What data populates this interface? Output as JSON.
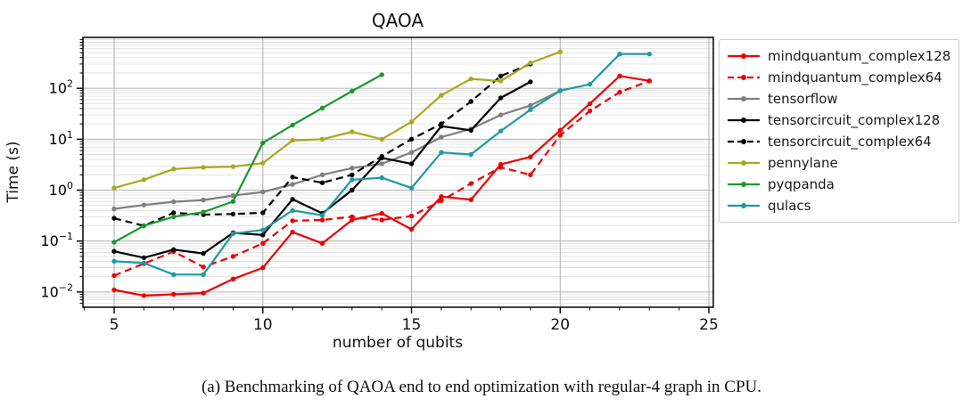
{
  "figure": {
    "caption": "(a) Benchmarking of QAOA end to end optimization with regular-4 graph in CPU."
  },
  "chart_data": {
    "type": "line",
    "title": "QAOA",
    "xlabel": "number of qubits",
    "ylabel": "Time (s)",
    "x_ticks": [
      5,
      10,
      15,
      20,
      25
    ],
    "x_minor_tick_step": 1,
    "y_scale": "log",
    "y_tick_exponents": [
      -2,
      -1,
      0,
      1,
      2
    ],
    "xlim": [
      3.95,
      25.15
    ],
    "ylim_log": [
      -2.3,
      3.0
    ],
    "grid": "both",
    "legend_position": "outside-right",
    "axis_color": "#000000",
    "grid_major_color": "#b0b0b0",
    "grid_minor_color": "#dcdcdc",
    "series": [
      {
        "name": "mindquantum_complex128",
        "color": "#ec0000",
        "dash": "solid",
        "points": [
          [
            5,
            0.011
          ],
          [
            6,
            0.0085
          ],
          [
            7,
            0.009
          ],
          [
            8,
            0.0095
          ],
          [
            9,
            0.018
          ],
          [
            10,
            0.03
          ],
          [
            11,
            0.15
          ],
          [
            12,
            0.09
          ],
          [
            13,
            0.26
          ],
          [
            14,
            0.35
          ],
          [
            15,
            0.17
          ],
          [
            16,
            0.75
          ],
          [
            17,
            0.65
          ],
          [
            18,
            3.2
          ],
          [
            19,
            4.5
          ],
          [
            20,
            15
          ],
          [
            21,
            50
          ],
          [
            22,
            175
          ],
          [
            23,
            140
          ]
        ]
      },
      {
        "name": "mindquantum_complex64",
        "color": "#ec0000",
        "dash": "dashed",
        "points": [
          [
            5,
            0.021
          ],
          [
            6,
            0.036
          ],
          [
            7,
            0.062
          ],
          [
            8,
            0.031
          ],
          [
            9,
            0.05
          ],
          [
            10,
            0.09
          ],
          [
            11,
            0.25
          ],
          [
            12,
            0.26
          ],
          [
            13,
            0.3
          ],
          [
            14,
            0.26
          ],
          [
            15,
            0.31
          ],
          [
            16,
            0.62
          ],
          [
            17,
            1.35
          ],
          [
            18,
            2.8
          ],
          [
            19,
            2.0
          ],
          [
            20,
            12
          ],
          [
            21,
            36
          ],
          [
            22,
            84
          ],
          [
            23,
            140
          ]
        ]
      },
      {
        "name": "tensorflow",
        "color": "#7f7f7f",
        "dash": "solid",
        "points": [
          [
            5,
            0.43
          ],
          [
            6,
            0.51
          ],
          [
            7,
            0.59
          ],
          [
            8,
            0.64
          ],
          [
            9,
            0.78
          ],
          [
            10,
            0.92
          ],
          [
            11,
            1.3
          ],
          [
            12,
            2.0
          ],
          [
            13,
            2.7
          ],
          [
            14,
            3.3
          ],
          [
            15,
            5.5
          ],
          [
            16,
            11
          ],
          [
            17,
            16
          ],
          [
            18,
            30
          ],
          [
            19,
            46
          ],
          [
            20,
            90
          ]
        ]
      },
      {
        "name": "tensorcircuit_complex128",
        "color": "#000000",
        "dash": "solid",
        "points": [
          [
            5,
            0.063
          ],
          [
            6,
            0.047
          ],
          [
            7,
            0.068
          ],
          [
            8,
            0.057
          ],
          [
            9,
            0.145
          ],
          [
            10,
            0.132
          ],
          [
            11,
            0.66
          ],
          [
            12,
            0.35
          ],
          [
            13,
            1.0
          ],
          [
            14,
            4.3
          ],
          [
            15,
            3.3
          ],
          [
            16,
            18
          ],
          [
            17,
            15
          ],
          [
            18,
            65
          ],
          [
            19,
            134
          ]
        ]
      },
      {
        "name": "tensorcircuit_complex64",
        "color": "#000000",
        "dash": "dashed",
        "points": [
          [
            5,
            0.28
          ],
          [
            6,
            0.2
          ],
          [
            7,
            0.36
          ],
          [
            8,
            0.33
          ],
          [
            9,
            0.34
          ],
          [
            10,
            0.36
          ],
          [
            11,
            1.8
          ],
          [
            12,
            1.4
          ],
          [
            13,
            2.0
          ],
          [
            14,
            4.6
          ],
          [
            15,
            10
          ],
          [
            16,
            20
          ],
          [
            17,
            55
          ],
          [
            18,
            175
          ],
          [
            19,
            300
          ]
        ]
      },
      {
        "name": "pennylane",
        "color": "#a8a91e",
        "dash": "solid",
        "points": [
          [
            5,
            1.1
          ],
          [
            6,
            1.6
          ],
          [
            7,
            2.6
          ],
          [
            8,
            2.8
          ],
          [
            9,
            2.9
          ],
          [
            10,
            3.4
          ],
          [
            11,
            9.5
          ],
          [
            12,
            10
          ],
          [
            13,
            14
          ],
          [
            14,
            10
          ],
          [
            15,
            22
          ],
          [
            16,
            73
          ],
          [
            17,
            153
          ],
          [
            18,
            139
          ],
          [
            19,
            316
          ],
          [
            20,
            520
          ]
        ]
      },
      {
        "name": "pyqpanda",
        "color": "#18982f",
        "dash": "solid",
        "points": [
          [
            5,
            0.095
          ],
          [
            6,
            0.2
          ],
          [
            7,
            0.3
          ],
          [
            8,
            0.37
          ],
          [
            9,
            0.6
          ],
          [
            10,
            8.5
          ],
          [
            11,
            19
          ],
          [
            12,
            41
          ],
          [
            13,
            88
          ],
          [
            14,
            185
          ]
        ]
      },
      {
        "name": "qulacs",
        "color": "#1f99a3",
        "dash": "solid",
        "points": [
          [
            5,
            0.04
          ],
          [
            6,
            0.037
          ],
          [
            7,
            0.022
          ],
          [
            8,
            0.022
          ],
          [
            9,
            0.14
          ],
          [
            10,
            0.165
          ],
          [
            11,
            0.4
          ],
          [
            12,
            0.32
          ],
          [
            13,
            1.6
          ],
          [
            14,
            1.75
          ],
          [
            15,
            1.1
          ],
          [
            16,
            5.5
          ],
          [
            17,
            5.0
          ],
          [
            18,
            14.5
          ],
          [
            19,
            38
          ],
          [
            20,
            90
          ],
          [
            21,
            120
          ],
          [
            22,
            470
          ],
          [
            23,
            470
          ]
        ]
      }
    ]
  }
}
